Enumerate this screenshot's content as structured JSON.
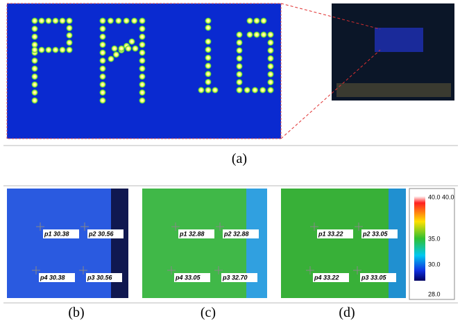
{
  "panels": [
    {
      "caption": "(a)"
    },
    {
      "caption": "(b)",
      "points": [
        "p1 30.38",
        "p2 30.56",
        "p4 30.38",
        "p3 30.56"
      ]
    },
    {
      "caption": "(c)",
      "points": [
        "p1 32.88",
        "p2 32.88",
        "p4 33.05",
        "p3 32.70"
      ]
    },
    {
      "caption": "(d)",
      "points": [
        "p1 33.22",
        "p2 33.05",
        "p4 33.22",
        "p3 33.05"
      ]
    }
  ],
  "colorbar": {
    "labels": [
      "40.0 40.0",
      "35.0",
      "30.0",
      "28.0"
    ]
  }
}
